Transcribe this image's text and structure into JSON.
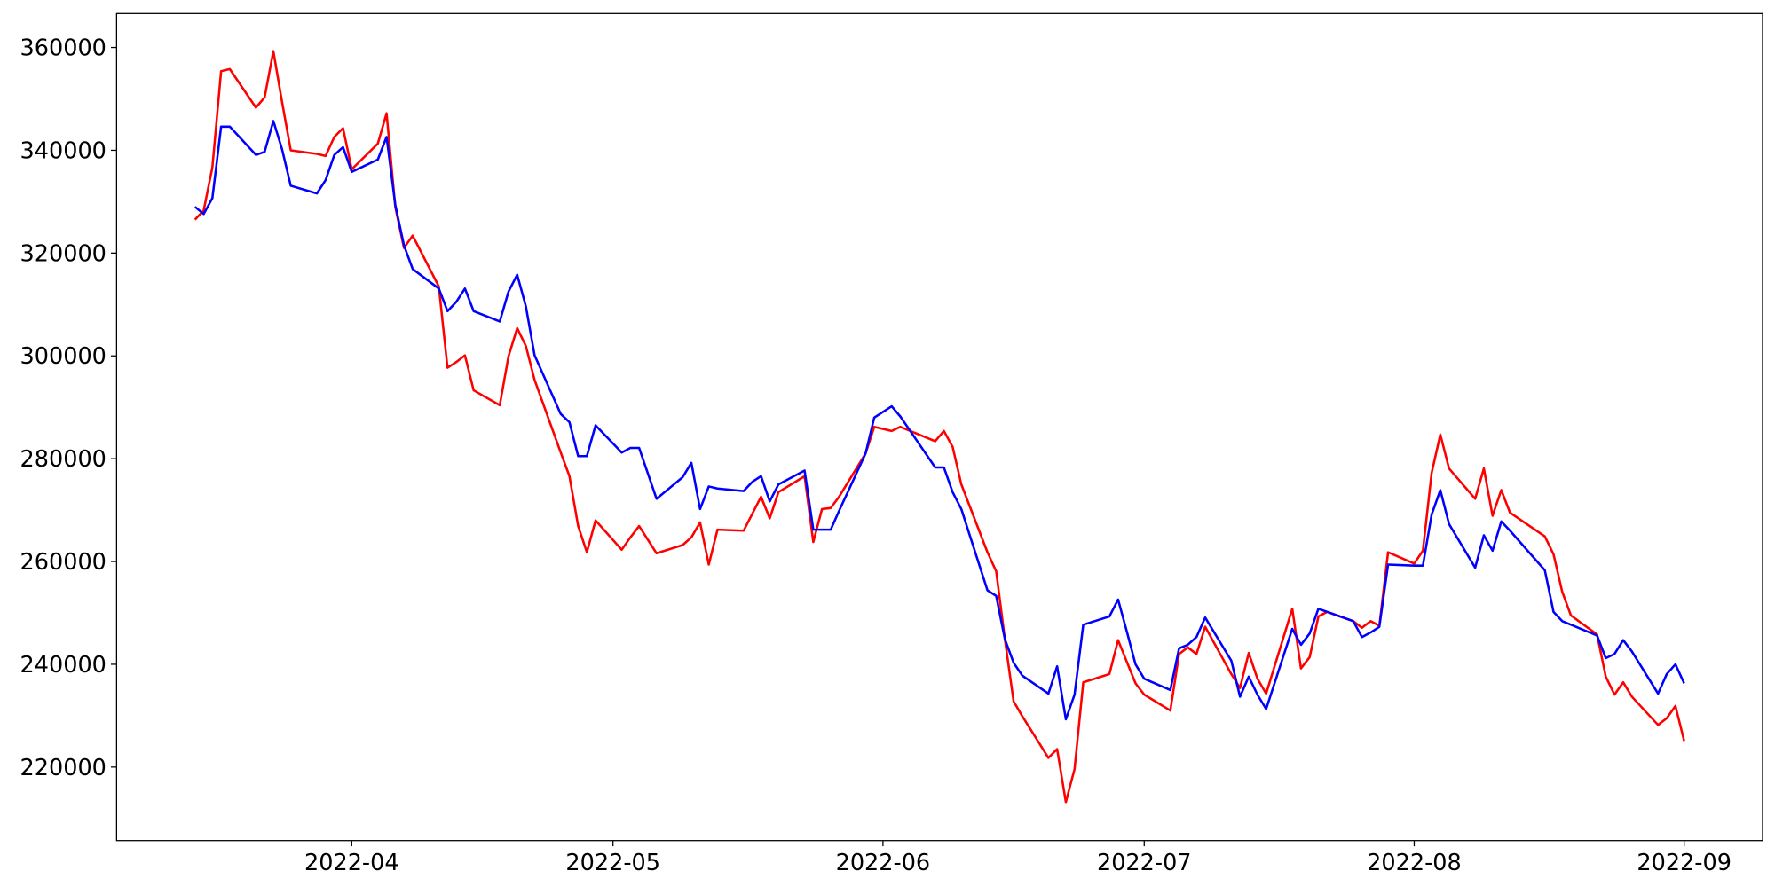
{
  "chart_data": {
    "type": "line",
    "x": [
      "2022-03-14",
      "2022-03-15",
      "2022-03-16",
      "2022-03-17",
      "2022-03-18",
      "2022-03-21",
      "2022-03-22",
      "2022-03-23",
      "2022-03-24",
      "2022-03-25",
      "2022-03-28",
      "2022-03-29",
      "2022-03-30",
      "2022-03-31",
      "2022-04-01",
      "2022-04-04",
      "2022-04-05",
      "2022-04-06",
      "2022-04-07",
      "2022-04-08",
      "2022-04-11",
      "2022-04-12",
      "2022-04-13",
      "2022-04-14",
      "2022-04-15",
      "2022-04-18",
      "2022-04-19",
      "2022-04-20",
      "2022-04-21",
      "2022-04-22",
      "2022-04-25",
      "2022-04-26",
      "2022-04-27",
      "2022-04-28",
      "2022-04-29",
      "2022-05-02",
      "2022-05-03",
      "2022-05-04",
      "2022-05-06",
      "2022-05-09",
      "2022-05-10",
      "2022-05-11",
      "2022-05-12",
      "2022-05-13",
      "2022-05-16",
      "2022-05-17",
      "2022-05-18",
      "2022-05-19",
      "2022-05-20",
      "2022-05-23",
      "2022-05-24",
      "2022-05-25",
      "2022-05-26",
      "2022-05-27",
      "2022-05-30",
      "2022-05-31",
      "2022-06-02",
      "2022-06-03",
      "2022-06-07",
      "2022-06-08",
      "2022-06-09",
      "2022-06-10",
      "2022-06-13",
      "2022-06-14",
      "2022-06-15",
      "2022-06-16",
      "2022-06-17",
      "2022-06-20",
      "2022-06-21",
      "2022-06-22",
      "2022-06-23",
      "2022-06-24",
      "2022-06-27",
      "2022-06-28",
      "2022-06-29",
      "2022-06-30",
      "2022-07-01",
      "2022-07-04",
      "2022-07-05",
      "2022-07-06",
      "2022-07-07",
      "2022-07-08",
      "2022-07-11",
      "2022-07-12",
      "2022-07-13",
      "2022-07-14",
      "2022-07-15",
      "2022-07-18",
      "2022-07-19",
      "2022-07-20",
      "2022-07-21",
      "2022-07-22",
      "2022-07-25",
      "2022-07-26",
      "2022-07-27",
      "2022-07-28",
      "2022-07-29",
      "2022-08-01",
      "2022-08-02",
      "2022-08-03",
      "2022-08-04",
      "2022-08-05",
      "2022-08-08",
      "2022-08-09",
      "2022-08-10",
      "2022-08-11",
      "2022-08-12",
      "2022-08-16",
      "2022-08-17",
      "2022-08-18",
      "2022-08-19",
      "2022-08-22",
      "2022-08-23",
      "2022-08-24",
      "2022-08-25",
      "2022-08-26",
      "2022-08-29",
      "2022-08-30",
      "2022-08-31",
      "2022-09-01"
    ],
    "series": [
      {
        "color": "#ff0000",
        "values": [
          326500,
          328300,
          336700,
          355400,
          355800,
          348300,
          350300,
          359300,
          349400,
          340000,
          339300,
          338900,
          342600,
          344300,
          336300,
          341300,
          347200,
          329000,
          321000,
          323400,
          313500,
          297700,
          298800,
          300100,
          293300,
          290400,
          299900,
          305400,
          301900,
          295300,
          281200,
          276600,
          266900,
          261800,
          268000,
          262300,
          264700,
          266900,
          261600,
          263200,
          264700,
          267600,
          259400,
          266200,
          266000,
          269300,
          272600,
          268400,
          273500,
          276600,
          263800,
          270200,
          270400,
          272700,
          281000,
          286200,
          285400,
          286200,
          283400,
          285400,
          282300,
          275000,
          261800,
          258100,
          244900,
          232800,
          229900,
          221800,
          223500,
          213200,
          219600,
          236500,
          238100,
          244700,
          240500,
          236300,
          234100,
          231000,
          242000,
          243300,
          242000,
          247300,
          238100,
          235400,
          242200,
          237200,
          234300,
          250800,
          239200,
          241400,
          249300,
          250200,
          248400,
          247100,
          248400,
          247500,
          261800,
          259600,
          262100,
          277200,
          284700,
          278100,
          272200,
          278100,
          268900,
          273900,
          269500,
          264900,
          261400,
          254100,
          249500,
          245800,
          237600,
          234100,
          236500,
          233700,
          228200,
          229500,
          231900,
          225100
        ]
      },
      {
        "color": "#0000ff",
        "values": [
          329000,
          327600,
          330700,
          344600,
          344600,
          339100,
          339700,
          345700,
          340200,
          333100,
          331600,
          334200,
          339100,
          340600,
          335800,
          338200,
          342600,
          329400,
          321500,
          316900,
          313100,
          308700,
          310500,
          313100,
          308700,
          306700,
          312500,
          315800,
          309600,
          300100,
          288700,
          287100,
          280500,
          280500,
          286500,
          281200,
          282100,
          282100,
          272200,
          276400,
          279200,
          270200,
          274600,
          274200,
          273700,
          275500,
          276600,
          271700,
          275000,
          277700,
          266200,
          266200,
          266200,
          270000,
          281000,
          288000,
          290200,
          288200,
          278300,
          278300,
          273500,
          270200,
          254400,
          253300,
          244900,
          240300,
          237800,
          234300,
          239600,
          229300,
          234100,
          247700,
          249300,
          252600,
          246400,
          240000,
          237200,
          235000,
          243100,
          243800,
          245300,
          249100,
          240700,
          233700,
          237600,
          234100,
          231300,
          246900,
          243800,
          246000,
          250800,
          250200,
          248400,
          245300,
          246200,
          247300,
          259400,
          259200,
          259200,
          269100,
          273900,
          267300,
          258800,
          265100,
          262100,
          267800,
          266000,
          258300,
          250200,
          248400,
          247700,
          245600,
          241200,
          242000,
          244700,
          242500,
          234300,
          238100,
          240000,
          236300
        ]
      }
    ],
    "xlim": [
      "2022-03-05",
      "2022-09-10"
    ],
    "xticks": [
      {
        "value": "2022-04-01",
        "label": "2022-04"
      },
      {
        "value": "2022-05-01",
        "label": "2022-05"
      },
      {
        "value": "2022-06-01",
        "label": "2022-06"
      },
      {
        "value": "2022-07-01",
        "label": "2022-07"
      },
      {
        "value": "2022-08-01",
        "label": "2022-08"
      },
      {
        "value": "2022-09-01",
        "label": "2022-09"
      }
    ],
    "ylim": [
      205700,
      366600
    ],
    "yticks": [
      220000,
      240000,
      260000,
      280000,
      300000,
      320000,
      340000,
      360000
    ],
    "grid": false
  }
}
